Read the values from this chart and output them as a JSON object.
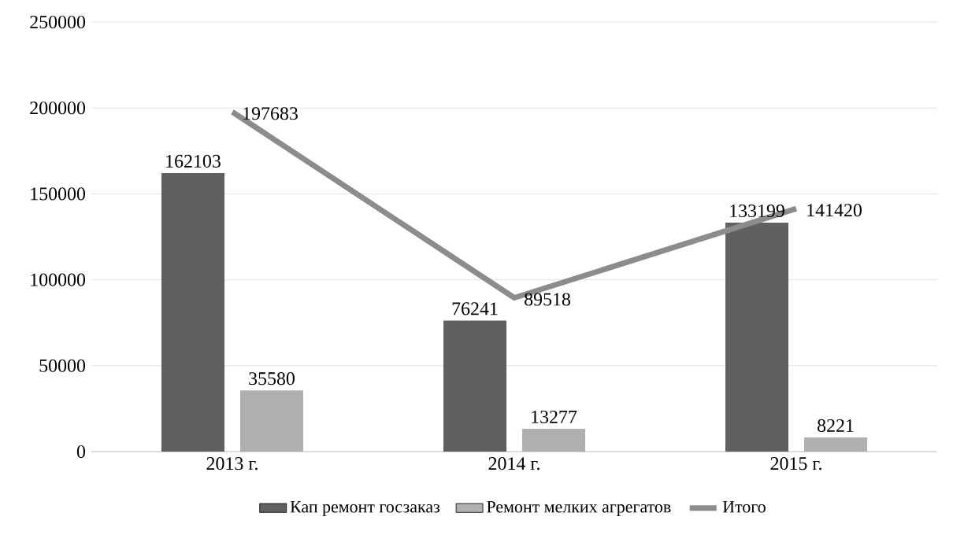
{
  "chart_data": {
    "type": "bar",
    "categories": [
      "2013 г.",
      "2014 г.",
      "2015 г."
    ],
    "series": [
      {
        "name": "Кап ремонт госзаказ",
        "color": "#606060",
        "values": [
          162103,
          76241,
          133199
        ]
      },
      {
        "name": "Ремонт мелких агрегатов",
        "color": "#b0b0b0",
        "values": [
          35580,
          13277,
          8221
        ]
      },
      {
        "name": "Итого",
        "type": "line",
        "color": "#8c8c8c",
        "values": [
          197683,
          89518,
          141420
        ]
      }
    ],
    "ylim": [
      0,
      250000
    ],
    "yticks": [
      0,
      50000,
      100000,
      150000,
      200000,
      250000
    ],
    "grid": "y",
    "legend": "bottom",
    "data_labels": true,
    "marker": "none",
    "line_style": "solid"
  }
}
